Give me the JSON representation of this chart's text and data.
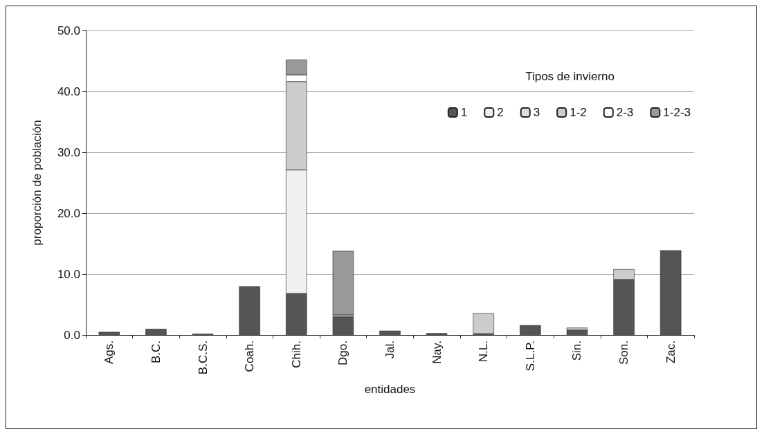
{
  "chart_data": {
    "type": "bar",
    "stacked": true,
    "xlabel": "entidades",
    "ylabel": "proporción de población",
    "legend_title": "Tipos de invierno",
    "legend": "top right",
    "grid": "y",
    "categories": [
      "Ags.",
      "B.C.",
      "B.C.S.",
      "Coah.",
      "Chih.",
      "Dgo.",
      "Jal.",
      "Nay.",
      "N.L.",
      "S.L.P.",
      "Sin.",
      "Son.",
      "Zac."
    ],
    "ylim": [
      0,
      50
    ],
    "yticks": [
      {
        "value": 0,
        "label": "0.0"
      },
      {
        "value": 10,
        "label": "10.0"
      },
      {
        "value": 20,
        "label": "20.0"
      },
      {
        "value": 30,
        "label": "30.0"
      },
      {
        "value": 40,
        "label": "40.0"
      },
      {
        "value": 50,
        "label": "50.0"
      }
    ],
    "series": [
      {
        "name": "1",
        "color": "#555555",
        "values": [
          0.5,
          1.0,
          0.2,
          8.0,
          6.8,
          3.0,
          0.7,
          0.3,
          0.2,
          1.6,
          0.8,
          9.1,
          13.9
        ]
      },
      {
        "name": "2",
        "color": "#f0f0f0",
        "values": [
          null,
          null,
          null,
          null,
          20.3,
          null,
          null,
          null,
          null,
          null,
          null,
          null,
          null
        ]
      },
      {
        "name": "3",
        "color": "#dddddd",
        "values": [
          null,
          null,
          null,
          null,
          null,
          null,
          null,
          null,
          null,
          null,
          null,
          null,
          null
        ]
      },
      {
        "name": "1-2",
        "color": "#cccccc",
        "values": [
          null,
          null,
          null,
          null,
          14.5,
          0.3,
          null,
          null,
          3.4,
          null,
          0.4,
          1.7,
          null
        ]
      },
      {
        "name": "2-3",
        "color": "#ffffff",
        "values": [
          null,
          null,
          null,
          null,
          1.1,
          null,
          null,
          null,
          null,
          null,
          null,
          null,
          null
        ]
      },
      {
        "name": "1-2-3",
        "color": "#999999",
        "values": [
          null,
          null,
          null,
          null,
          2.5,
          10.5,
          null,
          null,
          null,
          null,
          null,
          null,
          null
        ]
      }
    ]
  }
}
